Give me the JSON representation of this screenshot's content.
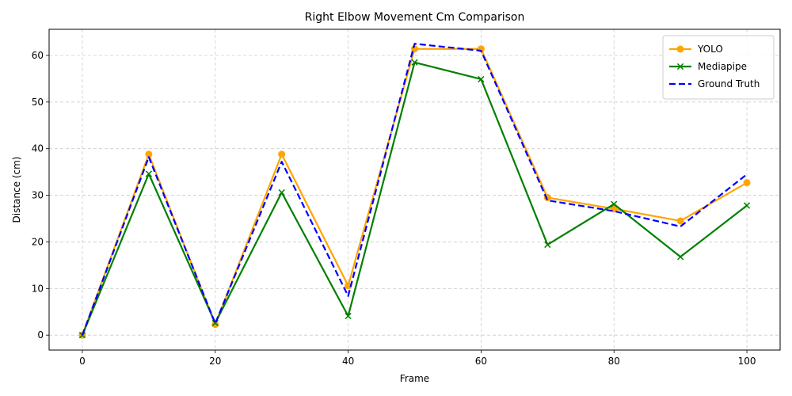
{
  "chart_data": {
    "type": "line",
    "title": "Right Elbow Movement Cm Comparison",
    "xlabel": "Frame",
    "ylabel": "Distance (cm)",
    "xlim": [
      -5,
      105
    ],
    "ylim": [
      -3.2,
      65.6
    ],
    "xticks": [
      0,
      20,
      40,
      60,
      80,
      100
    ],
    "yticks": [
      0,
      10,
      20,
      30,
      40,
      50,
      60
    ],
    "grid": true,
    "legend_position": "top-right",
    "x": [
      0,
      10,
      20,
      30,
      40,
      50,
      60,
      70,
      80,
      90,
      100
    ],
    "series": [
      {
        "name": "YOLO",
        "color": "#ffa500",
        "marker": "circle",
        "linestyle": "solid",
        "values": [
          0,
          38.8,
          2.3,
          38.8,
          10.6,
          61.4,
          61.4,
          29.5,
          27.1,
          24.5,
          32.7
        ]
      },
      {
        "name": "Mediapipe",
        "color": "#008000",
        "marker": "x",
        "linestyle": "solid",
        "values": [
          0,
          34.6,
          2.6,
          30.6,
          4.1,
          58.5,
          54.9,
          19.4,
          28.1,
          16.8,
          27.8
        ]
      },
      {
        "name": "Ground Truth",
        "color": "#0000ff",
        "marker": "none",
        "linestyle": "dashed",
        "values": [
          0,
          38.2,
          2.5,
          37.2,
          8.4,
          62.5,
          61.0,
          28.9,
          26.6,
          23.3,
          34.5
        ]
      }
    ]
  }
}
